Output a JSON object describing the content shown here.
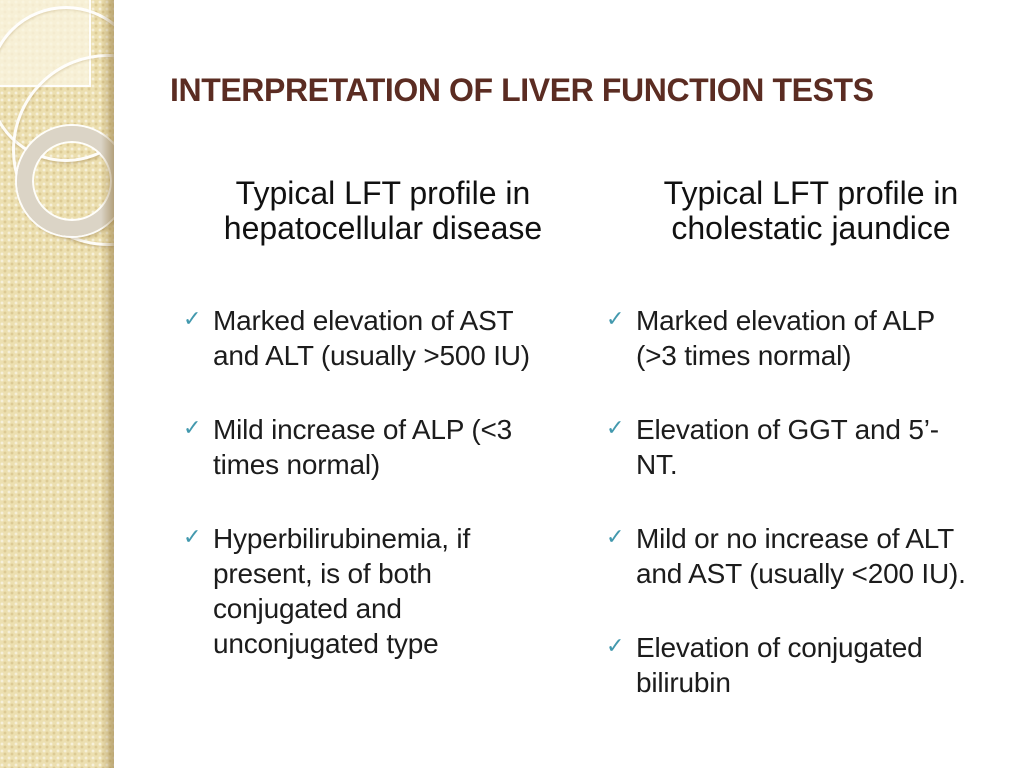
{
  "slide_title": "INTERPRETATION OF LIVER FUNCTION TESTS",
  "bullet_glyph": "✓",
  "columns": [
    {
      "header": "Typical LFT profile in\nhepatocellular disease",
      "bullets": [
        "Marked elevation of AST\nand ALT (usually >500 IU)",
        "Mild increase of ALP (<3\ntimes normal)",
        "Hyperbilirubinemia, if\npresent, is of both\nconjugated and\nunconjugated type"
      ]
    },
    {
      "header": "Typical LFT profile in\ncholestatic jaundice",
      "bullets": [
        "Marked elevation of ALP\n(>3 times normal)",
        "Elevation of GGT and 5’-\nNT.",
        "Mild or no increase of ALT\nand AST (usually <200 IU).",
        "Elevation of conjugated\nbilirubin"
      ]
    }
  ],
  "colors": {
    "title": "#5b2c22",
    "body_text": "#1c1c1c",
    "checkmark": "#4399ae",
    "sidebar_base": "#ecdfb0",
    "background": "#ffffff"
  }
}
